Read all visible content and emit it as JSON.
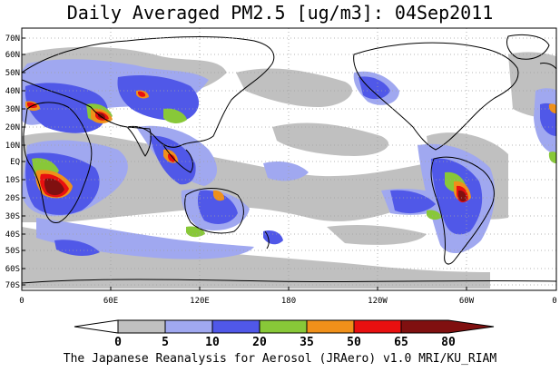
{
  "title": "Daily Averaged PM2.5 [ug/m3]: 04Sep2011",
  "y_ticks": [
    "70N",
    "60N",
    "50N",
    "40N",
    "30N",
    "20N",
    "10N",
    "EQ",
    "10S",
    "20S",
    "30S",
    "40S",
    "50S",
    "60S",
    "70S"
  ],
  "x_ticks": [
    "0",
    "60E",
    "120E",
    "180",
    "120W",
    "60W",
    "0"
  ],
  "colorbar": {
    "labels": [
      "0",
      "5",
      "10",
      "20",
      "35",
      "50",
      "65",
      "80"
    ],
    "colors": [
      "#ffffff",
      "#c0c0c0",
      "#a0a8f0",
      "#5058e8",
      "#88c838",
      "#f0901a",
      "#e81010",
      "#801010"
    ]
  },
  "footer": "The Japanese Reanalysis for Aerosol (JRAero) v1.0 MRI/KU_RIAM"
}
